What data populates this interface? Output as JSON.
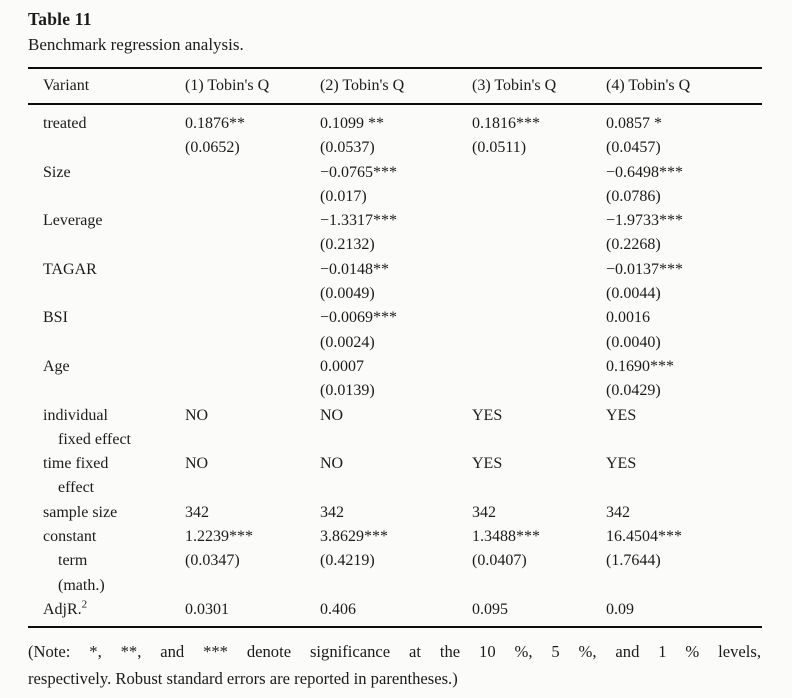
{
  "page": {
    "background": "#fbfbf9",
    "text_color": "#1b1b1b",
    "rule_color": "#0d0d0d"
  },
  "header": {
    "table_label": "Table 11",
    "caption": "Benchmark regression analysis."
  },
  "table": {
    "columns": [
      "Variant",
      "(1) Tobin's Q",
      "(2) Tobin's Q",
      "(3) Tobin's Q",
      "(4) Tobin's Q"
    ],
    "rows": [
      {
        "label": "treated",
        "cells": [
          "0.1876**",
          "0.1099 **",
          "0.1816***",
          "0.0857 *"
        ]
      },
      {
        "label": "",
        "cells": [
          "(0.0652)",
          "(0.0537)",
          "(0.0511)",
          "(0.0457)"
        ]
      },
      {
        "label": "Size",
        "cells": [
          "",
          "−0.0765***",
          "",
          "−0.6498***"
        ]
      },
      {
        "label": "",
        "cells": [
          "",
          "(0.017)",
          "",
          "(0.0786)"
        ]
      },
      {
        "label": "Leverage",
        "cells": [
          "",
          "−1.3317***",
          "",
          "−1.9733***"
        ]
      },
      {
        "label": "",
        "cells": [
          "",
          "(0.2132)",
          "",
          "(0.2268)"
        ]
      },
      {
        "label": "TAGAR",
        "cells": [
          "",
          "−0.0148**",
          "",
          "−0.0137***"
        ]
      },
      {
        "label": "",
        "cells": [
          "",
          "(0.0049)",
          "",
          "(0.0044)"
        ]
      },
      {
        "label": "BSI",
        "cells": [
          "",
          "−0.0069***",
          "",
          "0.0016"
        ]
      },
      {
        "label": "",
        "cells": [
          "",
          "(0.0024)",
          "",
          "(0.0040)"
        ]
      },
      {
        "label": "Age",
        "cells": [
          "",
          "0.0007",
          "",
          "0.1690***"
        ]
      },
      {
        "label": "",
        "cells": [
          "",
          "(0.0139)",
          "",
          "(0.0429)"
        ]
      },
      {
        "label": "individual",
        "cells": [
          "NO",
          "NO",
          "YES",
          "YES"
        ]
      },
      {
        "label": "fixed effect",
        "indent": true,
        "cells": [
          "",
          "",
          "",
          ""
        ]
      },
      {
        "label": "time fixed",
        "cells": [
          "NO",
          "NO",
          "YES",
          "YES"
        ]
      },
      {
        "label": "effect",
        "indent": true,
        "cells": [
          "",
          "",
          "",
          ""
        ]
      },
      {
        "label": "sample size",
        "cells": [
          "342",
          "342",
          "342",
          "342"
        ]
      },
      {
        "label": "constant",
        "cells": [
          "1.2239***",
          "3.8629***",
          "1.3488***",
          "16.4504***"
        ]
      },
      {
        "label": "term",
        "indent": true,
        "cells": [
          "(0.0347)",
          "(0.4219)",
          "(0.0407)",
          "(1.7644)"
        ]
      },
      {
        "label": "(math.)",
        "indent": true,
        "cells": [
          "",
          "",
          "",
          ""
        ]
      },
      {
        "label": "AdjR.",
        "label_sup": "2",
        "cells": [
          "0.0301",
          "0.406",
          "0.095",
          "0.09"
        ]
      }
    ]
  },
  "note": {
    "line1": "(Note: *, **, and *** denote significance at the 10 %, 5 %, and 1 % levels,",
    "line2": "respectively. Robust standard errors are reported in parentheses.)"
  }
}
